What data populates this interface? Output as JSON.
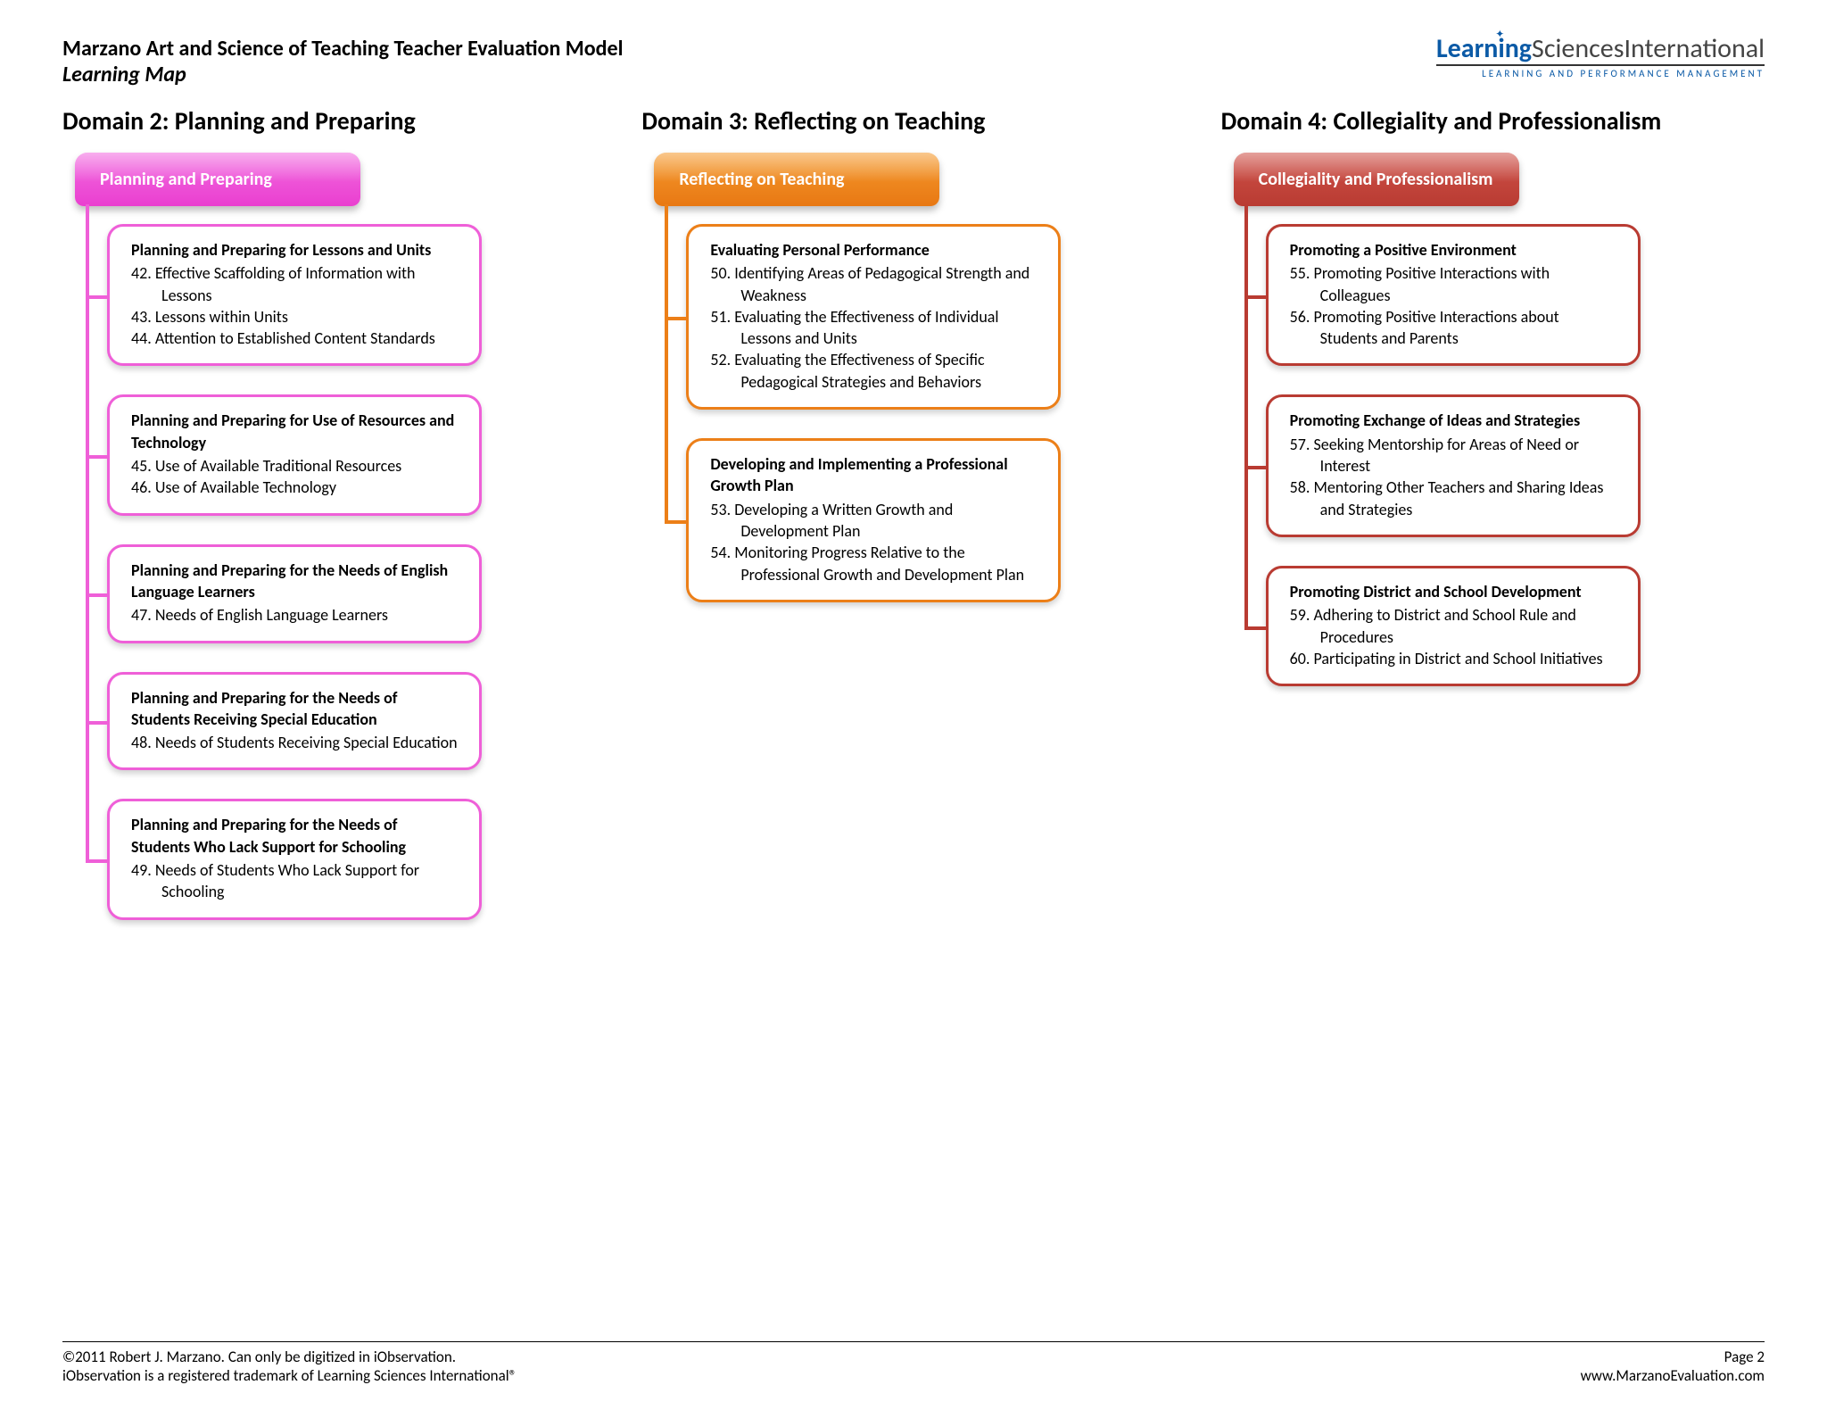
{
  "header": {
    "title": "Marzano Art and Science of Teaching Teacher Evaluation Model",
    "subtitle": "Learning Map",
    "logo_learning": "Learning",
    "logo_sciences": "Sciences",
    "logo_intl": "International",
    "logo_sub": "LEARNING AND PERFORMANCE MANAGEMENT"
  },
  "colors": {
    "pink_border": "#ef5fd8",
    "orange_border": "#ec7f18",
    "red_border": "#b93b32",
    "background": "#ffffff"
  },
  "domains": [
    {
      "heading": "Domain 2: Planning and Preparing",
      "theme": "pink",
      "tab": "Planning and Preparing",
      "cards": [
        {
          "title": "Planning and Preparing for Lessons and Units",
          "items": [
            "42. Effective Scaffolding of Information with Lessons",
            "43. Lessons within Units",
            "44. Attention to Established Content Standards"
          ]
        },
        {
          "title": "Planning and Preparing for Use of Resources and Technology",
          "items": [
            "45. Use of Available Traditional Resources",
            "46. Use of Available Technology"
          ]
        },
        {
          "title": "Planning and Preparing for the Needs of English Language Learners",
          "items": [
            "47.  Needs of English Language Learners"
          ]
        },
        {
          "title": "Planning and Preparing for the Needs of Students Receiving Special Education",
          "items": [
            "48.  Needs of Students Receiving Special Education"
          ]
        },
        {
          "title": "Planning and Preparing for the Needs of Students Who Lack Support for Schooling",
          "items": [
            "49.  Needs of Students Who Lack Support for Schooling"
          ]
        }
      ]
    },
    {
      "heading": "Domain 3: Reflecting on Teaching",
      "theme": "orange",
      "tab": "Reflecting on Teaching",
      "cards": [
        {
          "title": "Evaluating Personal Performance",
          "items": [
            "50.  Identifying Areas of Pedagogical Strength and Weakness",
            "51. Evaluating the Effectiveness of Individual Lessons and Units",
            "52. Evaluating the Effectiveness of Specific Pedagogical Strategies and Behaviors"
          ]
        },
        {
          "title": "Developing and Implementing a Professional Growth Plan",
          "items": [
            "53. Developing a Written Growth and Development Plan",
            "54. Monitoring Progress Relative to the Professional Growth and Development Plan"
          ]
        }
      ]
    },
    {
      "heading": "Domain 4: Collegiality and Professionalism",
      "theme": "red",
      "tab": "Collegiality and Professionalism",
      "cards": [
        {
          "title": "Promoting a Positive Environment",
          "items": [
            "55. Promoting Positive Interactions with Colleagues",
            "56. Promoting Positive Interactions about Students and Parents"
          ]
        },
        {
          "title": "Promoting Exchange of Ideas and Strategies",
          "items": [
            "57. Seeking Mentorship for Areas of Need or Interest",
            "58. Mentoring Other Teachers and Sharing Ideas and Strategies"
          ]
        },
        {
          "title": "Promoting District and School Development",
          "items": [
            "59. Adhering to District and School Rule and Procedures",
            "60. Participating in District and School Initiatives"
          ]
        }
      ]
    }
  ],
  "footer": {
    "copyright": "©2011 Robert J. Marzano. Can only be digitized in iObservation.",
    "trademark": "iObservation is a registered trademark of Learning Sciences International®",
    "page": "Page 2",
    "url": "www.MarzanoEvaluation.com"
  }
}
